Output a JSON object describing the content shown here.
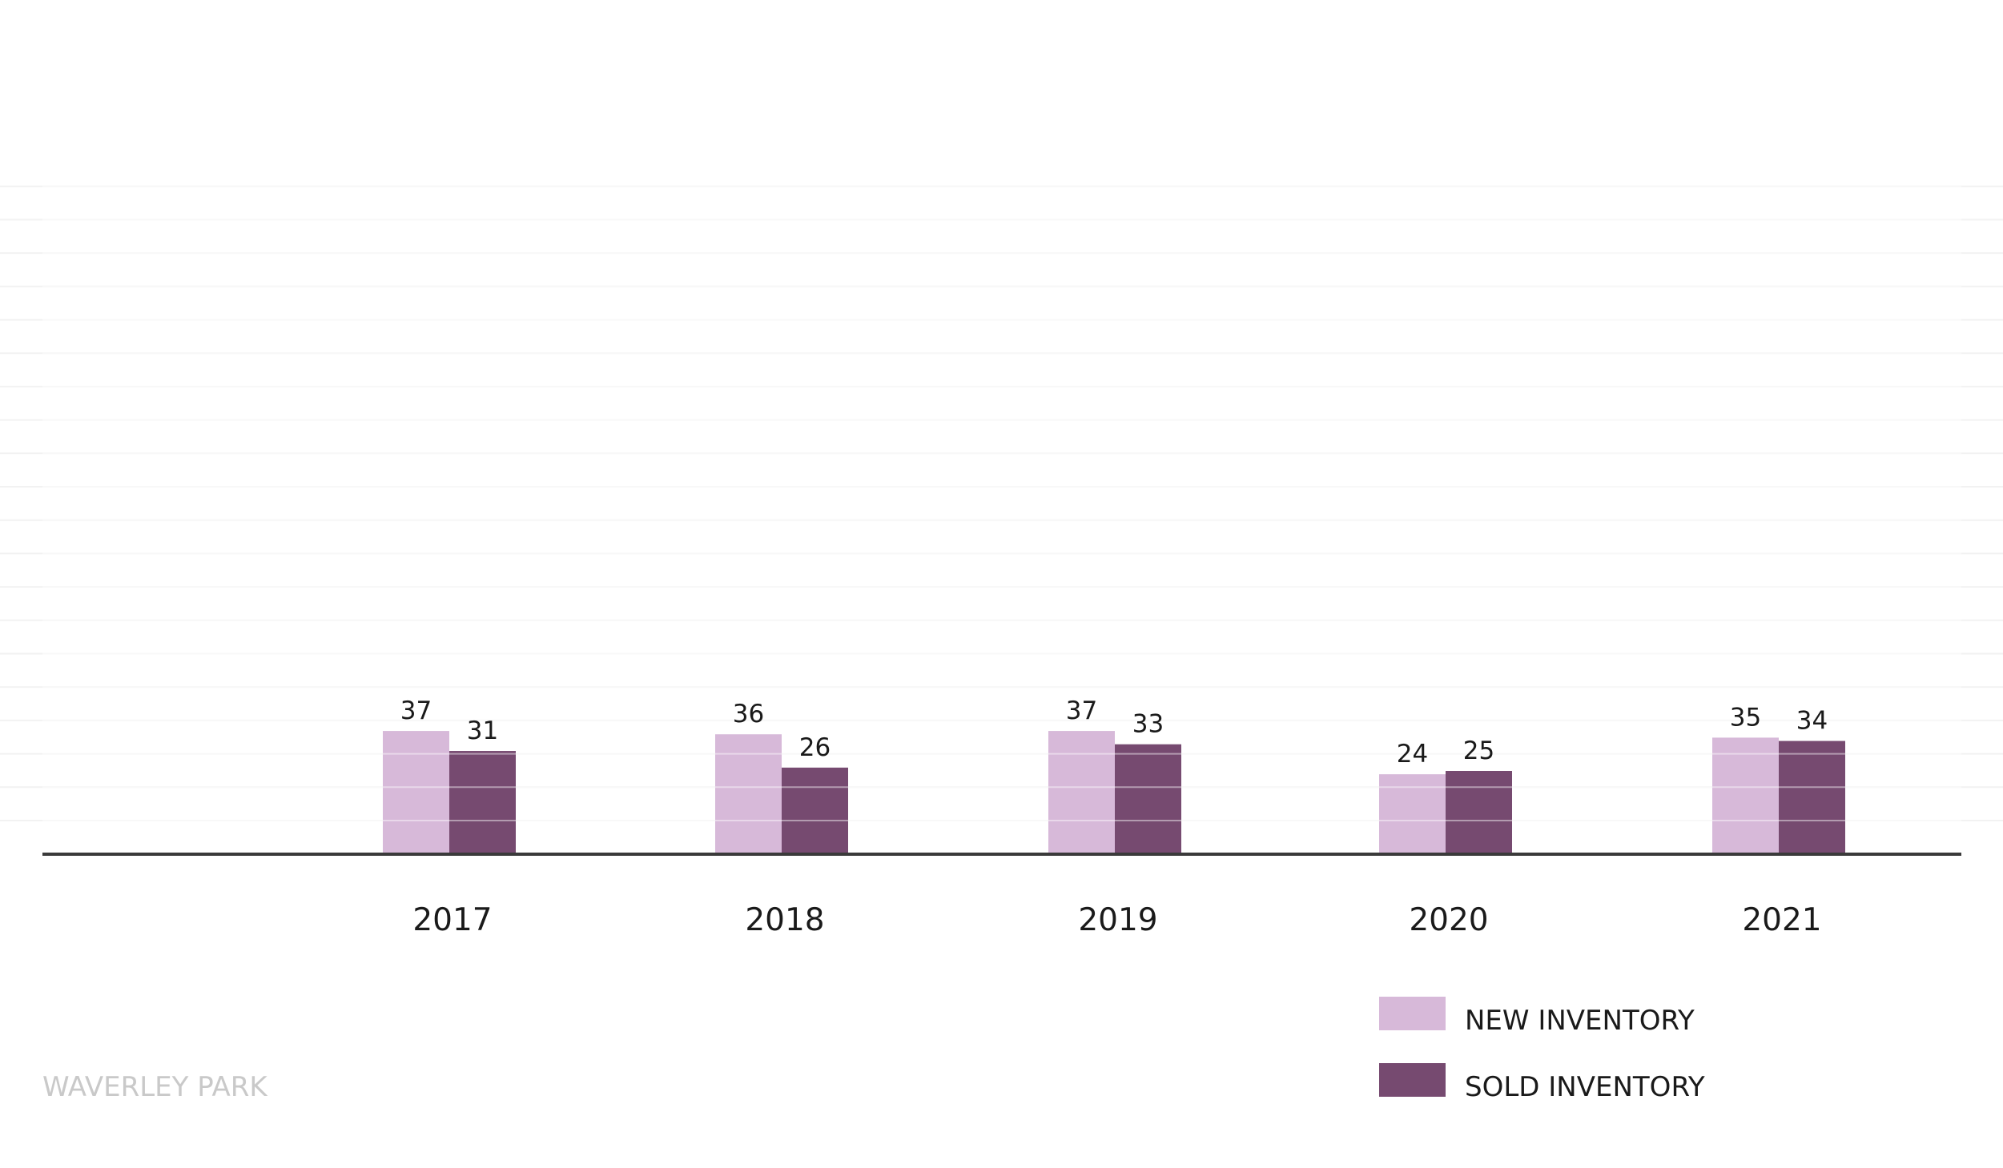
{
  "chart_data": {
    "type": "bar",
    "categories": [
      "2017",
      "2018",
      "2019",
      "2020",
      "2021"
    ],
    "series": [
      {
        "name": "NEW INVENTORY",
        "values": [
          37,
          36,
          37,
          24,
          35
        ],
        "color": "#d7b9d9"
      },
      {
        "name": "SOLD INVENTORY",
        "values": [
          31,
          26,
          33,
          25,
          34
        ],
        "color": "#764a70"
      }
    ],
    "ylim": [
      0,
      200
    ],
    "grid": true,
    "legend_position": "bottom-right",
    "title": "",
    "xlabel": "",
    "ylabel": ""
  },
  "footer": {
    "brand": "WAVERLEY PARK"
  }
}
